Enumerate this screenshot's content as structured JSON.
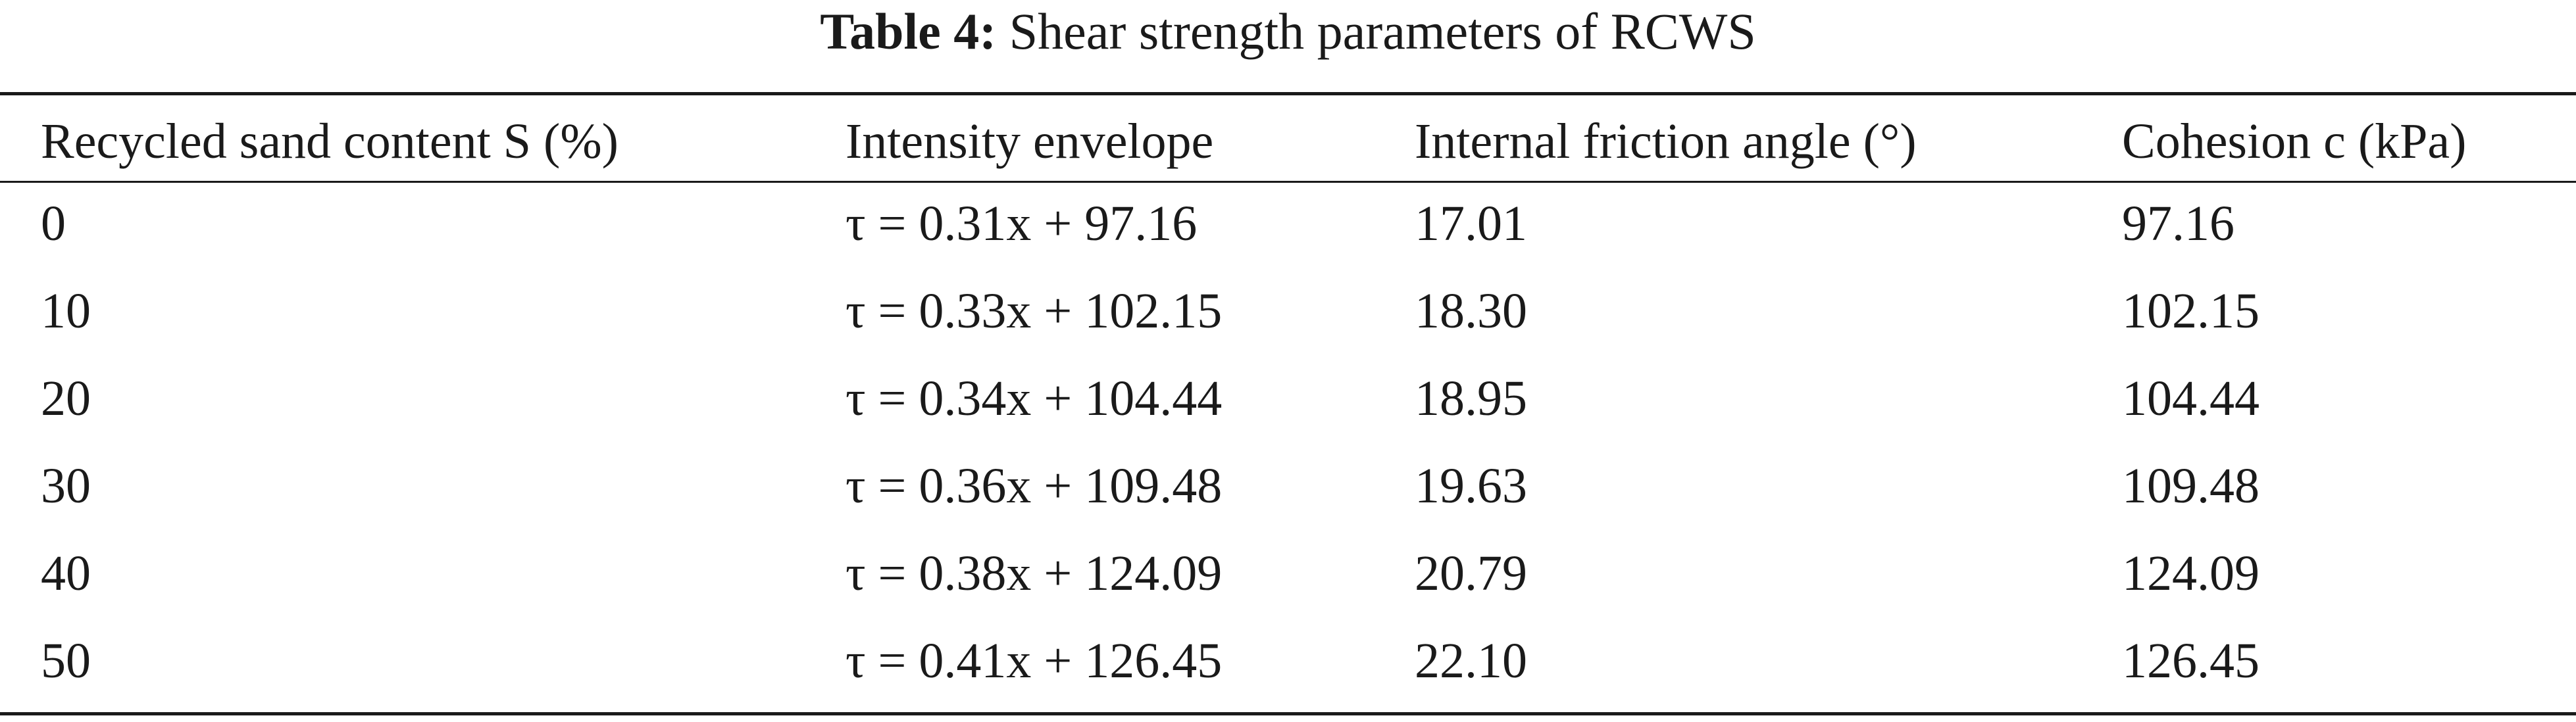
{
  "caption": {
    "label": "Table 4:",
    "text": "Shear strength parameters of RCWS"
  },
  "table": {
    "headers": [
      "Recycled sand content S (%)",
      "Intensity envelope",
      "Internal friction angle (°)",
      "Cohesion c (kPa)"
    ],
    "rows": [
      [
        "0",
        "τ = 0.31x + 97.16",
        "17.01",
        "97.16"
      ],
      [
        "10",
        "τ = 0.33x + 102.15",
        "18.30",
        "102.15"
      ],
      [
        "20",
        "τ = 0.34x + 104.44",
        "18.95",
        "104.44"
      ],
      [
        "30",
        "τ = 0.36x + 109.48",
        "19.63",
        "109.48"
      ],
      [
        "40",
        "τ = 0.38x + 124.09",
        "20.79",
        "124.09"
      ],
      [
        "50",
        "τ = 0.41x + 126.45",
        "22.10",
        "126.45"
      ]
    ]
  }
}
